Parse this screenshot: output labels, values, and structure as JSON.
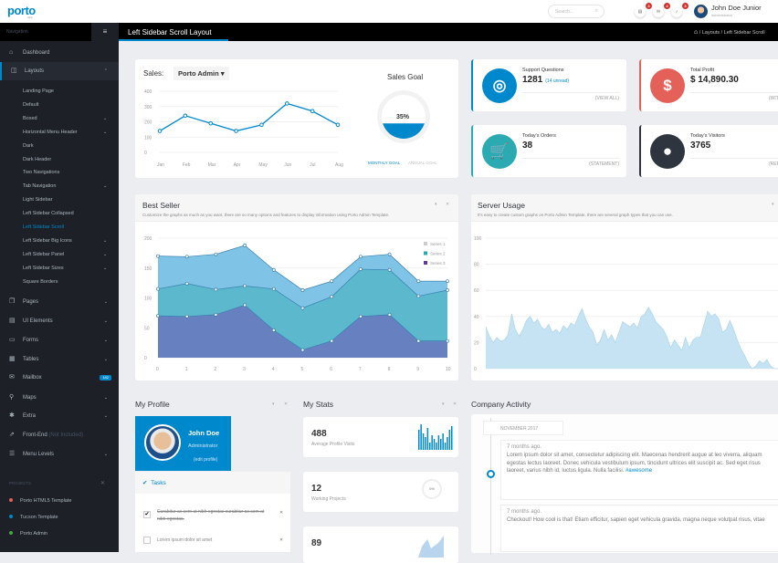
{
  "header": {
    "logo": "porto",
    "logo_sub": "admin",
    "search_placeholder": "Search...",
    "notifications": [
      {
        "icon": "tasks-icon",
        "count": "3"
      },
      {
        "icon": "envelope-icon",
        "count": "4"
      },
      {
        "icon": "bell-icon",
        "count": "3"
      }
    ],
    "user_name": "John Doe Junior",
    "user_role": "administrator"
  },
  "navbar": {
    "nav_label": "Navigation",
    "page_title": "Left Sidebar Scroll Layout",
    "breadcrumb": [
      "Layouts",
      "Left Sidebar Scroll"
    ]
  },
  "sidebar": {
    "items": [
      {
        "label": "Dashboard",
        "icon": "home-icon",
        "chev": ""
      },
      {
        "label": "Layouts",
        "icon": "columns-icon",
        "chev": "^",
        "active": true
      },
      {
        "label": "Pages",
        "icon": "copy-icon",
        "chev": "v"
      },
      {
        "label": "UI Elements",
        "icon": "tasks-icon",
        "chev": "v"
      },
      {
        "label": "Forms",
        "icon": "list-alt-icon",
        "chev": "v"
      },
      {
        "label": "Tables",
        "icon": "table-icon",
        "chev": "v"
      },
      {
        "label": "Mailbox",
        "icon": "envelope-icon",
        "badge": "182"
      },
      {
        "label": "Maps",
        "icon": "map-marker-icon",
        "chev": "v"
      },
      {
        "label": "Extra",
        "icon": "asterisk-icon",
        "chev": "v"
      },
      {
        "label": "Front-End",
        "icon": "external-link-icon",
        "note": "(Not Included)"
      },
      {
        "label": "Menu Levels",
        "icon": "align-left-icon",
        "chev": "v"
      }
    ],
    "layouts_sub": [
      {
        "label": "Landing Page"
      },
      {
        "label": "Default"
      },
      {
        "label": "Boxed",
        "chev": true
      },
      {
        "label": "Horizontal Menu Header",
        "chev": true
      },
      {
        "label": "Dark"
      },
      {
        "label": "Dark Header"
      },
      {
        "label": "Two Navigations"
      },
      {
        "label": "Tab Navigation",
        "chev": true
      },
      {
        "label": "Light Sidebar"
      },
      {
        "label": "Left Sidebar Collapsed"
      },
      {
        "label": "Left Sidebar Scroll",
        "current": true
      },
      {
        "label": "Left Sidebar Big Icons",
        "chev": true
      },
      {
        "label": "Left Sidebar Panel",
        "chev": true
      },
      {
        "label": "Left Sidebar Sizes",
        "chev": true
      },
      {
        "label": "Square Borders"
      }
    ],
    "projects_label": "PROJECTS",
    "projects": [
      {
        "label": "Porto HTML5 Template",
        "color": "#e36159"
      },
      {
        "label": "Tucson Template",
        "color": "#0088cc"
      },
      {
        "label": "Porto Admin",
        "color": "#47a447"
      }
    ]
  },
  "sales": {
    "label": "Sales:",
    "selected": "Porto Admin",
    "goal_title": "Sales Goal",
    "goal_value": "35%",
    "goal_fraction": 0.35,
    "tabs": [
      "MONTHLY GOAL",
      "ANNUAL GOAL"
    ]
  },
  "cards": [
    {
      "title": "Support Questions",
      "value": "1281",
      "extra": "(14 unread)",
      "link": "(VIEW ALL)",
      "color": "#0088cc",
      "icon": "life-ring-icon",
      "glyph": "◎"
    },
    {
      "title": "Total Profit",
      "value": "$ 14,890.30",
      "extra": "",
      "link": "(WITHDRAW)",
      "color": "#e36159",
      "icon": "dollar-icon",
      "glyph": "$"
    },
    {
      "title": "Today's Orders",
      "value": "38",
      "extra": "",
      "link": "(STATEMENT)",
      "color": "#2baab1",
      "icon": "shopping-cart-icon",
      "glyph": "🛒"
    },
    {
      "title": "Today's Visitors",
      "value": "3765",
      "extra": "",
      "link": "(REPORT)",
      "color": "#2e353e",
      "icon": "user-icon",
      "glyph": "●"
    }
  ],
  "best_seller": {
    "title": "Best Seller",
    "subtitle": "Customize the graphs as much as you want, there are so many options and features to display information using Porto Admin Template."
  },
  "server_usage": {
    "title": "Server Usage",
    "subtitle": "It's easy to create custom graphs on Porto Admin Template, there are several graph types that you can use."
  },
  "profile": {
    "title": "My Profile",
    "name": "John Doe",
    "role": "Administrator",
    "edit": "(edit profile)",
    "tasks_title": "Tasks",
    "tasks": [
      {
        "text": "Curabitur ac sem at nibh egestas curabitur ac sem at nibh egestas.",
        "done": true
      },
      {
        "text": "Lorem ipsum dolor sit amet",
        "done": false
      }
    ]
  },
  "stats": {
    "title": "My Stats",
    "items": [
      {
        "value": "488",
        "label": "Average Profile Visits"
      },
      {
        "value": "12",
        "label": "Working Projects",
        "gauge": "0%"
      },
      {
        "value": "89",
        "label": ""
      }
    ]
  },
  "activity": {
    "title": "Company Activity",
    "month": "NOVEMBER 2017",
    "posts": [
      {
        "time": "7 months ago.",
        "text": "Lorem ipsum dolor sit amet, consectetur adipiscing elit. Maecenas hendrerit augue at leo viverra, aliquam egestas lectus laoreet. Donec vehicula vestibulum ipsum, tincidunt ultrices elit suscipit ac. Sed eget risus laoreet, varius nibh id, luctus ligula. Nulla facilisi.",
        "tag": "#awesome"
      },
      {
        "time": "7 months ago.",
        "text": "Checkout! How cool is that! Etiam efficitur, sapien eget vehicula gravida, magna neque volutpat risus, vitae"
      }
    ]
  },
  "chart_data": [
    {
      "type": "line",
      "categories": [
        "Jan",
        "Feb",
        "Mar",
        "Apr",
        "May",
        "Jun",
        "Jul",
        "Aug"
      ],
      "values": [
        140,
        240,
        190,
        140,
        180,
        320,
        270,
        180
      ],
      "ylim": [
        0,
        400
      ],
      "yticks": [
        0,
        100,
        200,
        300,
        400
      ],
      "color": "#0088cc",
      "grid": true
    },
    {
      "type": "area",
      "stacked": true,
      "x": [
        0,
        1,
        2,
        3,
        4,
        5,
        6,
        7,
        8,
        9,
        10
      ],
      "series": [
        {
          "name": "Series 1",
          "values": [
            55,
            45,
            59,
            68,
            32,
            30,
            26,
            21,
            26,
            25,
            15
          ],
          "color": "#7fc3e6"
        },
        {
          "name": "Series 2",
          "values": [
            45,
            55,
            42,
            32,
            69,
            70,
            74,
            79,
            75,
            75,
            85
          ],
          "color": "#5cb8cd"
        },
        {
          "name": "Series 3",
          "values": [
            70,
            69,
            72,
            88,
            46,
            13,
            28,
            69,
            72,
            28,
            28
          ],
          "color": "#6780c0"
        }
      ],
      "ylim": [
        0,
        200
      ],
      "yticks": [
        0,
        50,
        100,
        150,
        200
      ],
      "legend": "top-right",
      "grid": true
    },
    {
      "type": "area",
      "values": [
        32,
        25,
        20,
        24,
        21,
        22,
        26,
        42,
        30,
        25,
        30,
        37,
        40,
        35,
        38,
        32,
        30,
        34,
        28,
        30,
        27,
        33,
        30,
        35,
        33,
        40,
        46,
        38,
        32,
        28,
        18,
        22,
        30,
        22,
        26,
        20,
        28,
        36,
        34,
        32,
        35,
        31,
        40,
        42,
        47,
        42,
        36,
        33,
        30,
        24,
        16,
        22,
        18,
        14,
        24,
        16,
        22,
        24,
        24,
        34,
        44,
        40,
        42,
        38,
        28,
        30,
        37,
        30,
        22,
        15,
        10,
        4,
        0,
        2,
        6,
        4,
        7,
        2,
        0,
        0
      ],
      "ylim": [
        0,
        100
      ],
      "yticks": [
        0,
        20,
        40,
        60,
        80,
        100
      ],
      "color": "#c5e3f2",
      "grid": true
    }
  ]
}
